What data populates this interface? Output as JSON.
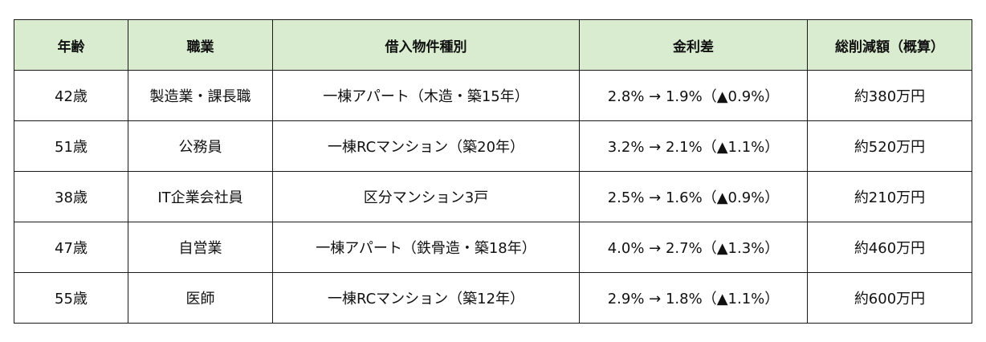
{
  "table": {
    "headers": [
      "年齢",
      "職業",
      "借入物件種別",
      "金利差",
      "総削減額（概算）"
    ],
    "rows": [
      [
        "42歳",
        "製造業・課長職",
        "一棟アパート（木造・築15年）",
        "2.8% → 1.9%（▲0.9%）",
        "約380万円"
      ],
      [
        "51歳",
        "公務員",
        "一棟RCマンション（築20年）",
        "3.2% → 2.1%（▲1.1%）",
        "約520万円"
      ],
      [
        "38歳",
        "IT企業会社員",
        "区分マンション3戸",
        "2.5% → 1.6%（▲0.9%）",
        "約210万円"
      ],
      [
        "47歳",
        "自営業",
        "一棟アパート（鉄骨造・築18年）",
        "4.0% → 2.7%（▲1.3%）",
        "約460万円"
      ],
      [
        "55歳",
        "医師",
        "一棟RCマンション（築12年）",
        "2.9% → 1.8%（▲1.1%）",
        "約600万円"
      ]
    ]
  },
  "colors": {
    "header_bg": "#d9ecd0",
    "border": "#1a1a1a"
  }
}
